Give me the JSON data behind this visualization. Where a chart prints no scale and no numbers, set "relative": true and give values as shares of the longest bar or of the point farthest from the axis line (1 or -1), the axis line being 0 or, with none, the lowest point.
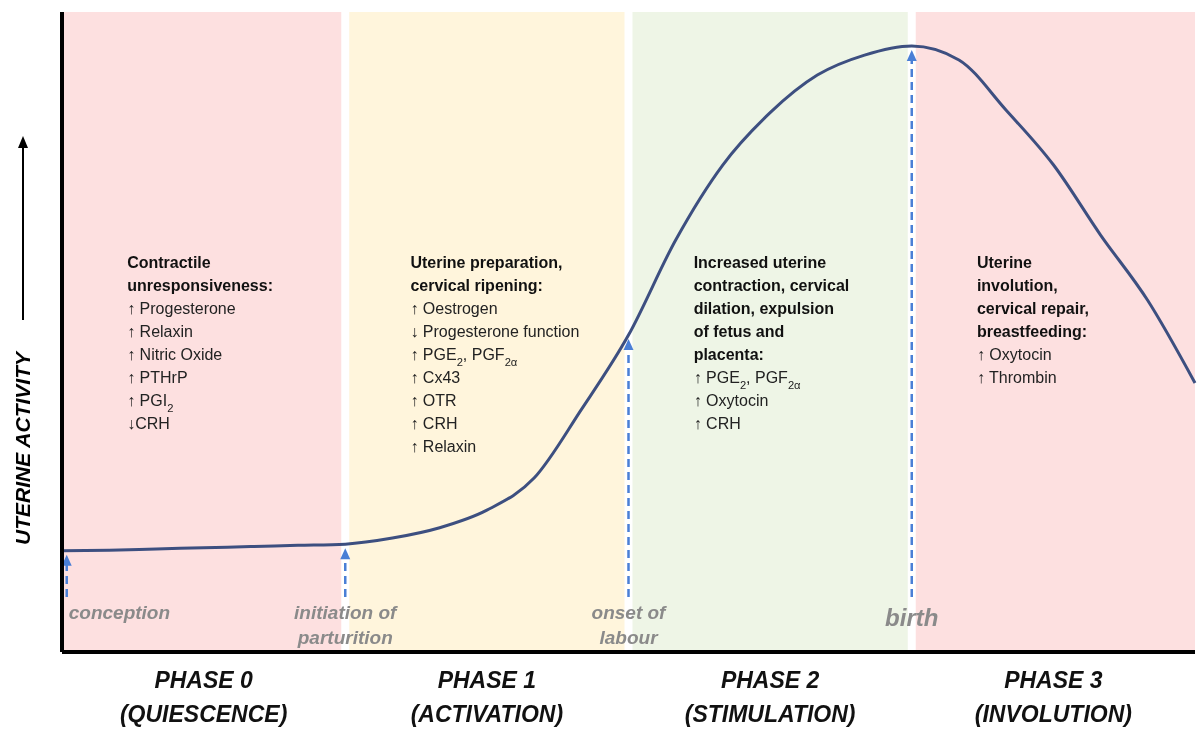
{
  "chart_data": {
    "type": "line",
    "relative": true,
    "ylabel": "UTERINE ACTIVITY",
    "categories": [
      null,
      null,
      null,
      "PHASE 0\n(QUIESCENCE)",
      null,
      null,
      null,
      null,
      null,
      "PHASE 1\n(ACTIVATION)",
      null,
      null,
      null,
      null,
      null,
      "PHASE 2\n(STIMULATION)",
      null,
      null,
      null,
      null,
      null,
      "PHASE 3\n(INVOLUTION)",
      null,
      null,
      null
    ],
    "series": [
      {
        "color": "#3d4f80",
        "values": [
          0.167,
          0.168,
          0.17,
          0.172,
          0.174,
          0.176,
          0.178,
          0.188,
          0.205,
          0.234,
          0.287,
          0.4,
          0.523,
          0.68,
          0.804,
          0.89,
          0.952,
          0.985,
          1,
          0.977,
          0.894,
          0.804,
          0.688,
          0.58,
          0.444
        ]
      }
    ],
    "annotations": [
      "conception",
      "initiation of\nparturition",
      "onset of\nlabour",
      "birth",
      "Contractile\nunresponsiveness:",
      "↑ Progesterone\n↑ Relaxin\n↑ Nitric Oxide\n↑ PTHrP\n↑ PGI$_{2}$\n↓CRH",
      "Uterine preparation,\ncervical ripening:",
      "↑ Oestrogen\n↓ Progesterone function\n↑ PGE$_{2}$, PGF$_{2α}$\n↑ Cx43\n↑ OTR\n↑ CRH\n↑ Relaxin",
      "Increased uterine\ncontraction, cervical\ndilation, expulsion\nof fetus and\nplacenta:",
      "↑ PGE$_{2}$, PGF$_{2α}$\n↑ Oxytocin\n↑ CRH",
      "Uterine\ninvolution,\ncervical repair,\nbreastfeeding:",
      "↑ Oxytocin\n↑ Thrombin"
    ]
  }
}
